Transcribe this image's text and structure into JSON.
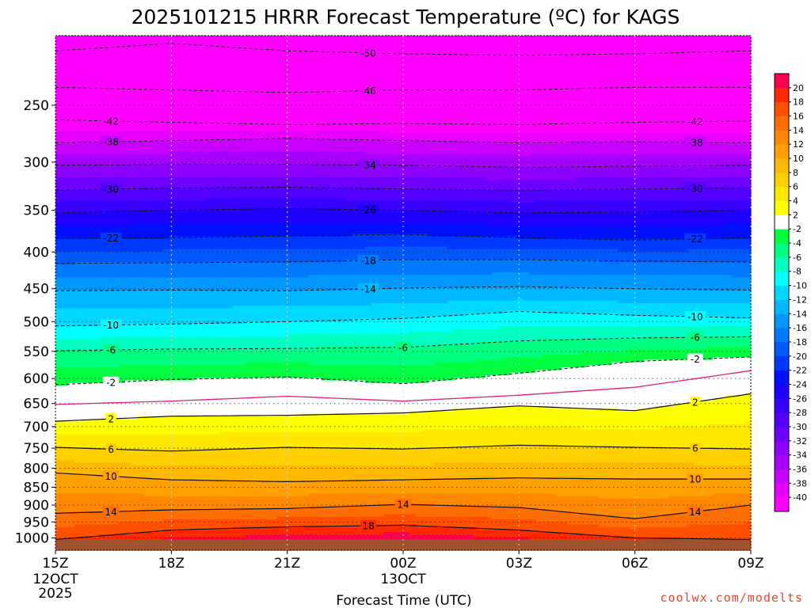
{
  "chart_data": {
    "type": "heatmap",
    "title": "2025101215 HRRR Forecast Temperature (ºC) for KAGS",
    "xlabel": "Forecast Time (UTC)",
    "ylabel": "",
    "x_ticks": [
      {
        "label": "15Z",
        "sub": [
          "12OCT",
          "2025"
        ]
      },
      {
        "label": "18Z",
        "sub": []
      },
      {
        "label": "21Z",
        "sub": []
      },
      {
        "label": "00Z",
        "sub": [
          "13OCT"
        ]
      },
      {
        "label": "03Z",
        "sub": []
      },
      {
        "label": "06Z",
        "sub": []
      },
      {
        "label": "09Z",
        "sub": []
      }
    ],
    "x_hours": [
      0,
      3,
      6,
      9,
      12,
      15,
      18
    ],
    "y_ticks": [
      250,
      300,
      350,
      400,
      450,
      500,
      550,
      600,
      650,
      700,
      750,
      800,
      850,
      900,
      950,
      1000
    ],
    "y_scale": "log-pressure",
    "y_range": [
      200,
      1040
    ],
    "surface_pressure": 1005,
    "grid": true,
    "colorbar": {
      "position": "right",
      "levels": [
        -42,
        -40,
        -38,
        -36,
        -34,
        -32,
        -30,
        -28,
        -26,
        -24,
        -22,
        -20,
        -18,
        -16,
        -14,
        -12,
        -10,
        -8,
        -6,
        -4,
        -2,
        2,
        4,
        6,
        8,
        10,
        12,
        14,
        16,
        18,
        20,
        22
      ],
      "tick_labels": [
        "-40",
        "-38",
        "-36",
        "-34",
        "-32",
        "-30",
        "-28",
        "-26",
        "-24",
        "-22",
        "-20",
        "-18",
        "-16",
        "-14",
        "-12",
        "-10",
        "-8",
        "-6",
        "-4",
        "-2",
        "2",
        "4",
        "6",
        "8",
        "10",
        "12",
        "14",
        "16",
        "18",
        "20"
      ],
      "colors": [
        "#ff00ff",
        "#e800ff",
        "#c800ff",
        "#a800ff",
        "#8c00ff",
        "#6e00ff",
        "#5200ff",
        "#3800ff",
        "#1e00ff",
        "#0010ff",
        "#0038ff",
        "#0058ff",
        "#0078ff",
        "#0098ff",
        "#00b8ff",
        "#00d8ff",
        "#00ffff",
        "#00ffc0",
        "#00ff80",
        "#00ff40",
        "#ffffff",
        "#ffff00",
        "#ffe800",
        "#ffd000",
        "#ffb800",
        "#ffa000",
        "#ff8800",
        "#ff6e00",
        "#ff5000",
        "#ff2800",
        "#ff0050"
      ]
    },
    "isotherms": [
      {
        "value": -50,
        "pressures": [
          210,
          205,
          210,
          212,
          213,
          212,
          210
        ],
        "labels": [
          "-50"
        ]
      },
      {
        "value": -46,
        "pressures": [
          236,
          238,
          240,
          238,
          238,
          236,
          236
        ],
        "labels": [
          "-46"
        ]
      },
      {
        "value": -42,
        "pressures": [
          262,
          264,
          266,
          265,
          266,
          264,
          263
        ],
        "labels": [
          "-42",
          "-42"
        ]
      },
      {
        "value": -38,
        "pressures": [
          282,
          280,
          278,
          280,
          282,
          281,
          282
        ],
        "labels": [
          "-38",
          "-38"
        ]
      },
      {
        "value": -34,
        "pressures": [
          303,
          302,
          302,
          303,
          305,
          304,
          303
        ],
        "labels": [
          "-34"
        ]
      },
      {
        "value": -30,
        "pressures": [
          328,
          326,
          325,
          327,
          328,
          327,
          326
        ],
        "labels": [
          "-30",
          "-30"
        ]
      },
      {
        "value": -26,
        "pressures": [
          353,
          350,
          348,
          350,
          353,
          352,
          350
        ],
        "labels": [
          "-26"
        ]
      },
      {
        "value": -22,
        "pressures": [
          383,
          382,
          380,
          378,
          382,
          385,
          382
        ],
        "labels": [
          "-22",
          "-22"
        ]
      },
      {
        "value": -18,
        "pressures": [
          415,
          414,
          413,
          410,
          410,
          412,
          413
        ],
        "labels": [
          "-18"
        ]
      },
      {
        "value": -14,
        "pressures": [
          453,
          452,
          453,
          449,
          447,
          450,
          452
        ],
        "labels": [
          "-14"
        ]
      },
      {
        "value": -10,
        "pressures": [
          507,
          504,
          500,
          495,
          484,
          490,
          494
        ],
        "labels": [
          "-10",
          "-10"
        ]
      },
      {
        "value": -6,
        "pressures": [
          549,
          546,
          545,
          543,
          532,
          527,
          525
        ],
        "labels": [
          "-6",
          "-6",
          "-6"
        ]
      },
      {
        "value": -2,
        "pressures": [
          612,
          602,
          597,
          610,
          590,
          568,
          560
        ],
        "labels": [
          "-2",
          "-2"
        ]
      },
      {
        "value": 0,
        "pressures": [
          652,
          645,
          635,
          645,
          633,
          617,
          585
        ],
        "labels": []
      },
      {
        "value": 2,
        "pressures": [
          688,
          677,
          675,
          670,
          655,
          665,
          630
        ],
        "labels": [
          "2",
          "2"
        ]
      },
      {
        "value": 6,
        "pressures": [
          748,
          757,
          748,
          752,
          743,
          748,
          752
        ],
        "labels": [
          "6",
          "6"
        ]
      },
      {
        "value": 10,
        "pressures": [
          812,
          830,
          835,
          830,
          825,
          828,
          828
        ],
        "labels": [
          "10",
          "10"
        ]
      },
      {
        "value": 14,
        "pressures": [
          924,
          914,
          910,
          898,
          907,
          940,
          900
        ],
        "labels": [
          "14",
          "14",
          "14"
        ]
      },
      {
        "value": 18,
        "pressures": [
          1005,
          975,
          965,
          960,
          975,
          1000,
          1005
        ],
        "labels": [
          "18"
        ]
      }
    ]
  },
  "footer": {
    "credit": "coolwx.com/modelts"
  }
}
